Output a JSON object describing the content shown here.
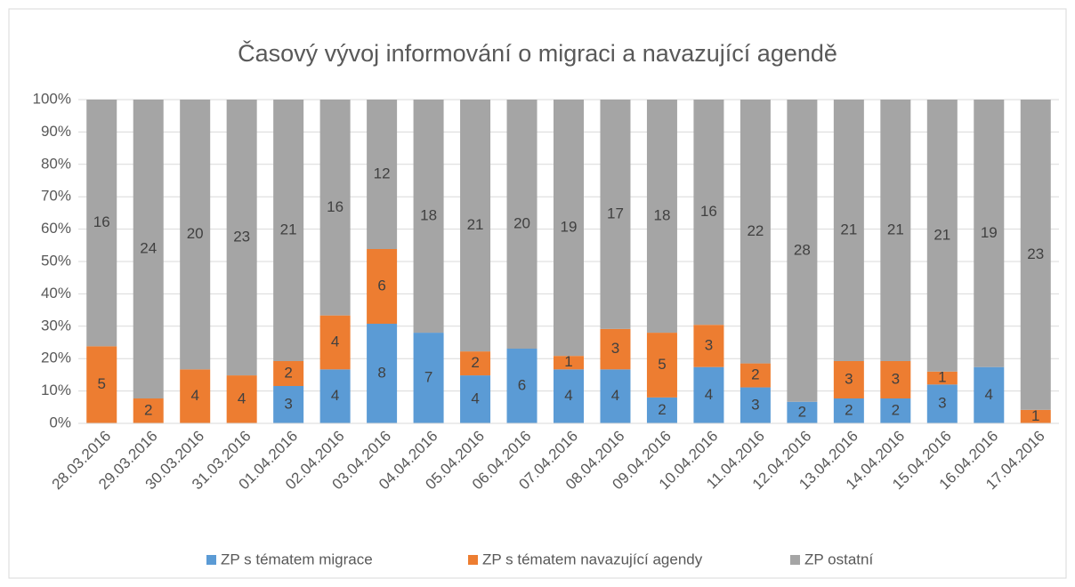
{
  "chart_data": {
    "type": "bar",
    "stacking": "percent",
    "title": "Časový vývoj informování o migraci a navazující agendě",
    "categories": [
      "28.03.2016",
      "29.03.2016",
      "30.03.2016",
      "31.03.2016",
      "01.04.2016",
      "02.04.2016",
      "03.04.2016",
      "04.04.2016",
      "05.04.2016",
      "06.04.2016",
      "07.04.2016",
      "08.04.2016",
      "09.04.2016",
      "10.04.2016",
      "11.04.2016",
      "12.04.2016",
      "13.04.2016",
      "14.04.2016",
      "15.04.2016",
      "16.04.2016",
      "17.04.2016"
    ],
    "series": [
      {
        "name": "ZP s tématem migrace",
        "color": "#5b9bd5",
        "values": [
          null,
          null,
          null,
          null,
          3,
          4,
          8,
          7,
          4,
          6,
          4,
          4,
          2,
          4,
          3,
          2,
          2,
          2,
          3,
          4,
          null
        ]
      },
      {
        "name": "ZP s tématem navazující agendy",
        "color": "#ed7d31",
        "values": [
          5,
          2,
          4,
          4,
          2,
          4,
          6,
          null,
          2,
          null,
          1,
          3,
          5,
          3,
          2,
          null,
          3,
          3,
          1,
          null,
          1
        ]
      },
      {
        "name": "ZP ostatní",
        "color": "#a5a5a5",
        "values": [
          16,
          24,
          20,
          23,
          21,
          16,
          12,
          18,
          21,
          20,
          19,
          17,
          18,
          16,
          22,
          28,
          21,
          21,
          21,
          19,
          23
        ]
      }
    ],
    "ylim": [
      0,
      100
    ],
    "yticks": [
      {
        "value": 0,
        "label": "0%"
      },
      {
        "value": 10,
        "label": "10%"
      },
      {
        "value": 20,
        "label": "20%"
      },
      {
        "value": 30,
        "label": "30%"
      },
      {
        "value": 40,
        "label": "40%"
      },
      {
        "value": 50,
        "label": "50%"
      },
      {
        "value": 60,
        "label": "60%"
      },
      {
        "value": 70,
        "label": "70%"
      },
      {
        "value": 80,
        "label": "80%"
      },
      {
        "value": 90,
        "label": "90%"
      },
      {
        "value": 100,
        "label": "100%"
      }
    ],
    "grid": true,
    "legend": "bottom"
  }
}
